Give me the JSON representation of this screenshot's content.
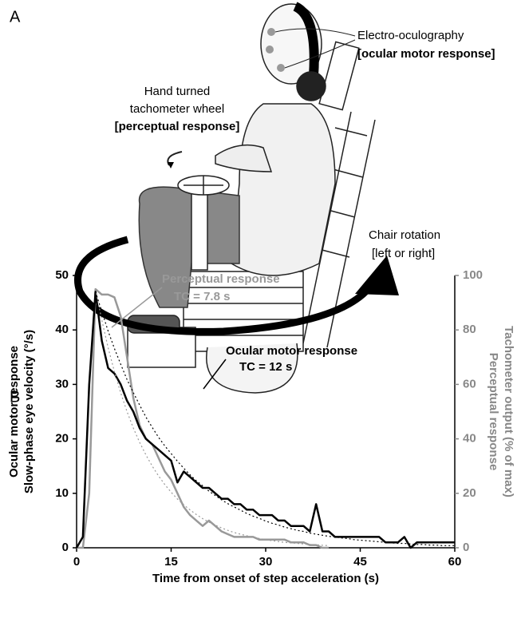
{
  "panel_a": {
    "label": "A",
    "electrode_title": "Electro-oculography",
    "electrode_note": "[ocular motor response]",
    "wheel_title": [
      "Hand turned",
      "tachometer wheel"
    ],
    "wheel_note": "[perceptual response]",
    "chair_title": "Chair rotation",
    "chair_note": "[left or right]"
  },
  "chart_data": {
    "type": "line",
    "panel_label": "B",
    "xlabel": "Time from onset of step acceleration (s)",
    "ylabel": [
      "Ocular motor response",
      "Slow-phase eye velocity (°/s)"
    ],
    "y2label": [
      "Perceptual response",
      "Tachometer output (% of max)"
    ],
    "x": [
      0,
      1,
      2,
      3,
      4,
      5,
      6,
      7,
      8,
      9,
      10,
      11,
      12,
      13,
      14,
      15,
      16,
      17,
      18,
      19,
      20,
      21,
      22,
      23,
      24,
      25,
      26,
      27,
      28,
      29,
      30,
      31,
      32,
      33,
      34,
      35,
      36,
      37,
      38,
      39,
      40,
      41,
      42,
      43,
      44,
      45,
      46,
      47,
      48,
      49,
      50,
      51,
      52,
      53,
      54,
      55,
      56,
      57,
      58,
      59,
      60
    ],
    "xlim": [
      0,
      60
    ],
    "xticks": [
      0,
      15,
      30,
      45,
      60
    ],
    "ylim": [
      0,
      50
    ],
    "yticks": [
      0,
      10,
      20,
      30,
      40,
      50
    ],
    "y2lim": [
      0,
      100
    ],
    "y2ticks": [
      0,
      20,
      40,
      60,
      80,
      100
    ],
    "series": [
      {
        "name": "Ocular motor response",
        "color": "#000000",
        "tc_label": "TC = 12 s",
        "values": [
          0,
          2,
          30,
          47,
          38,
          33,
          32,
          30,
          27,
          25,
          22,
          20,
          19,
          18,
          17,
          16,
          12,
          14,
          13,
          12,
          11,
          11,
          10,
          9,
          9,
          8,
          8,
          7,
          7,
          6,
          6,
          6,
          5,
          5,
          4,
          4,
          4,
          3,
          8,
          3,
          3,
          2,
          2,
          2,
          2,
          2,
          2,
          2,
          2,
          1,
          1,
          1,
          2,
          0,
          1,
          1,
          1,
          1,
          1,
          1,
          1
        ]
      },
      {
        "name": "Perceptual response",
        "color": "#999999",
        "axis": "y2",
        "tc_label": "TC = 7.8 s",
        "values": [
          0,
          0,
          20,
          95,
          93,
          93,
          92,
          85,
          70,
          55,
          45,
          40,
          38,
          33,
          28,
          25,
          20,
          15,
          12,
          10,
          8,
          10,
          8,
          6,
          5,
          4,
          4,
          4,
          4,
          3,
          3,
          3,
          3,
          3,
          2,
          2,
          2,
          1,
          1,
          0,
          0,
          null,
          null,
          null,
          null,
          null,
          null,
          null,
          null,
          null,
          null,
          null,
          null,
          null,
          null,
          null,
          null,
          null,
          null,
          null,
          null
        ]
      },
      {
        "color": "#000000",
        "dashed": true,
        "values": [
          null,
          null,
          null,
          47,
          43.4,
          39.8,
          36.6,
          33.7,
          30.9,
          28.5,
          26.2,
          24.0,
          22.1,
          20.3,
          18.7,
          17.3,
          15.9,
          14.6,
          13.4,
          12.3,
          11.4,
          10.4,
          9.6,
          8.8,
          8.1,
          7.5,
          6.9,
          6.3,
          5.8,
          5.4,
          4.9,
          4.5,
          4.2,
          3.8,
          3.5,
          3.2,
          3.0,
          2.7,
          2.5,
          2.3,
          2.1,
          2.0,
          1.8,
          1.7,
          1.5,
          1.4,
          1.3,
          1.2,
          1.1,
          1.0,
          0.9,
          0.8,
          0.8,
          0.7,
          0.6,
          0.6,
          0.5,
          0.5,
          0.4,
          0.4,
          0.4
        ]
      },
      {
        "color": "#999999",
        "dashed": true,
        "axis": "y2",
        "values": [
          null,
          null,
          null,
          95,
          83.6,
          73.5,
          64.7,
          56.9,
          50.0,
          44.0,
          38.7,
          34.1,
          30.0,
          26.4,
          23.2,
          20.4,
          17.9,
          15.8,
          13.9,
          12.2,
          10.7,
          9.4,
          8.3,
          7.3,
          6.4,
          5.6,
          5.0,
          4.4,
          3.8,
          3.4,
          3.0,
          2.6,
          2.3,
          2.0,
          1.8,
          1.6,
          1.4,
          1.2,
          1.1,
          0.9,
          0.8,
          null,
          null,
          null,
          null,
          null,
          null,
          null,
          null,
          null,
          null,
          null,
          null,
          null,
          null,
          null,
          null,
          null,
          null,
          null,
          null
        ]
      }
    ]
  }
}
